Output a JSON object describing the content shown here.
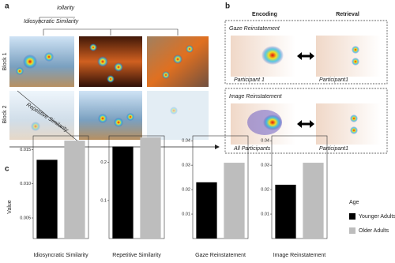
{
  "panel_a": {
    "label": "a",
    "top_label": "Iollarity",
    "title": "Idiosyncratic Similarity",
    "row_labels": [
      "Block 1",
      "Block 2"
    ],
    "diagonal_label": "Repetitive Similarity"
  },
  "panel_b": {
    "label": "b",
    "columns": [
      "Encoding",
      "Retrieval"
    ],
    "boxes": [
      {
        "title": "Gaze Reinstatement",
        "left_caption": "Participant 1",
        "right_caption": "Participant1"
      },
      {
        "title": "Image Reinstatement",
        "left_caption": "All Participants",
        "right_caption": "Participant1"
      }
    ]
  },
  "panel_c": {
    "label": "c",
    "y_label": "Value",
    "legend_title": "Age"
  },
  "chart_data": [
    {
      "type": "bar",
      "categories": [
        "Idiosyncratic Similarity"
      ],
      "ylim": [
        0.002,
        0.017
      ],
      "yticks": [
        0.005,
        {
          "value": 0.01,
          "label": "0.010"
        },
        0.015
      ],
      "series": [
        {
          "color": "#000000",
          "values": [
            0.0135
          ]
        },
        {
          "color": "#bdbdbd",
          "values": [
            0.0163
          ]
        }
      ]
    },
    {
      "type": "bar",
      "categories": [
        "Repetitive Similarity"
      ],
      "ylim": [
        0,
        0.27
      ],
      "yticks": [
        0.1,
        0.2
      ],
      "series": [
        {
          "color": "#000000",
          "values": [
            0.242
          ]
        },
        {
          "color": "#bdbdbd",
          "values": [
            0.266
          ]
        }
      ]
    },
    {
      "type": "bar",
      "categories": [
        "Gaze Reinstatement"
      ],
      "ylim": [
        0,
        0.042
      ],
      "yticks": [
        0.01,
        0.02,
        0.03,
        0.04
      ],
      "series": [
        {
          "color": "#000000",
          "values": [
            0.023
          ]
        },
        {
          "color": "#bdbdbd",
          "values": [
            0.031
          ]
        }
      ]
    },
    {
      "type": "bar",
      "categories": [
        "Image Reinstatement"
      ],
      "ylim": [
        0,
        0.042
      ],
      "yticks": [
        0.01,
        0.02,
        0.03,
        0.04
      ],
      "series": [
        {
          "name": "Younger Adults",
          "color": "#000000",
          "values": [
            0.022
          ]
        },
        {
          "name": "Older Adults",
          "color": "#bdbdbd",
          "values": [
            0.031
          ]
        }
      ]
    }
  ]
}
